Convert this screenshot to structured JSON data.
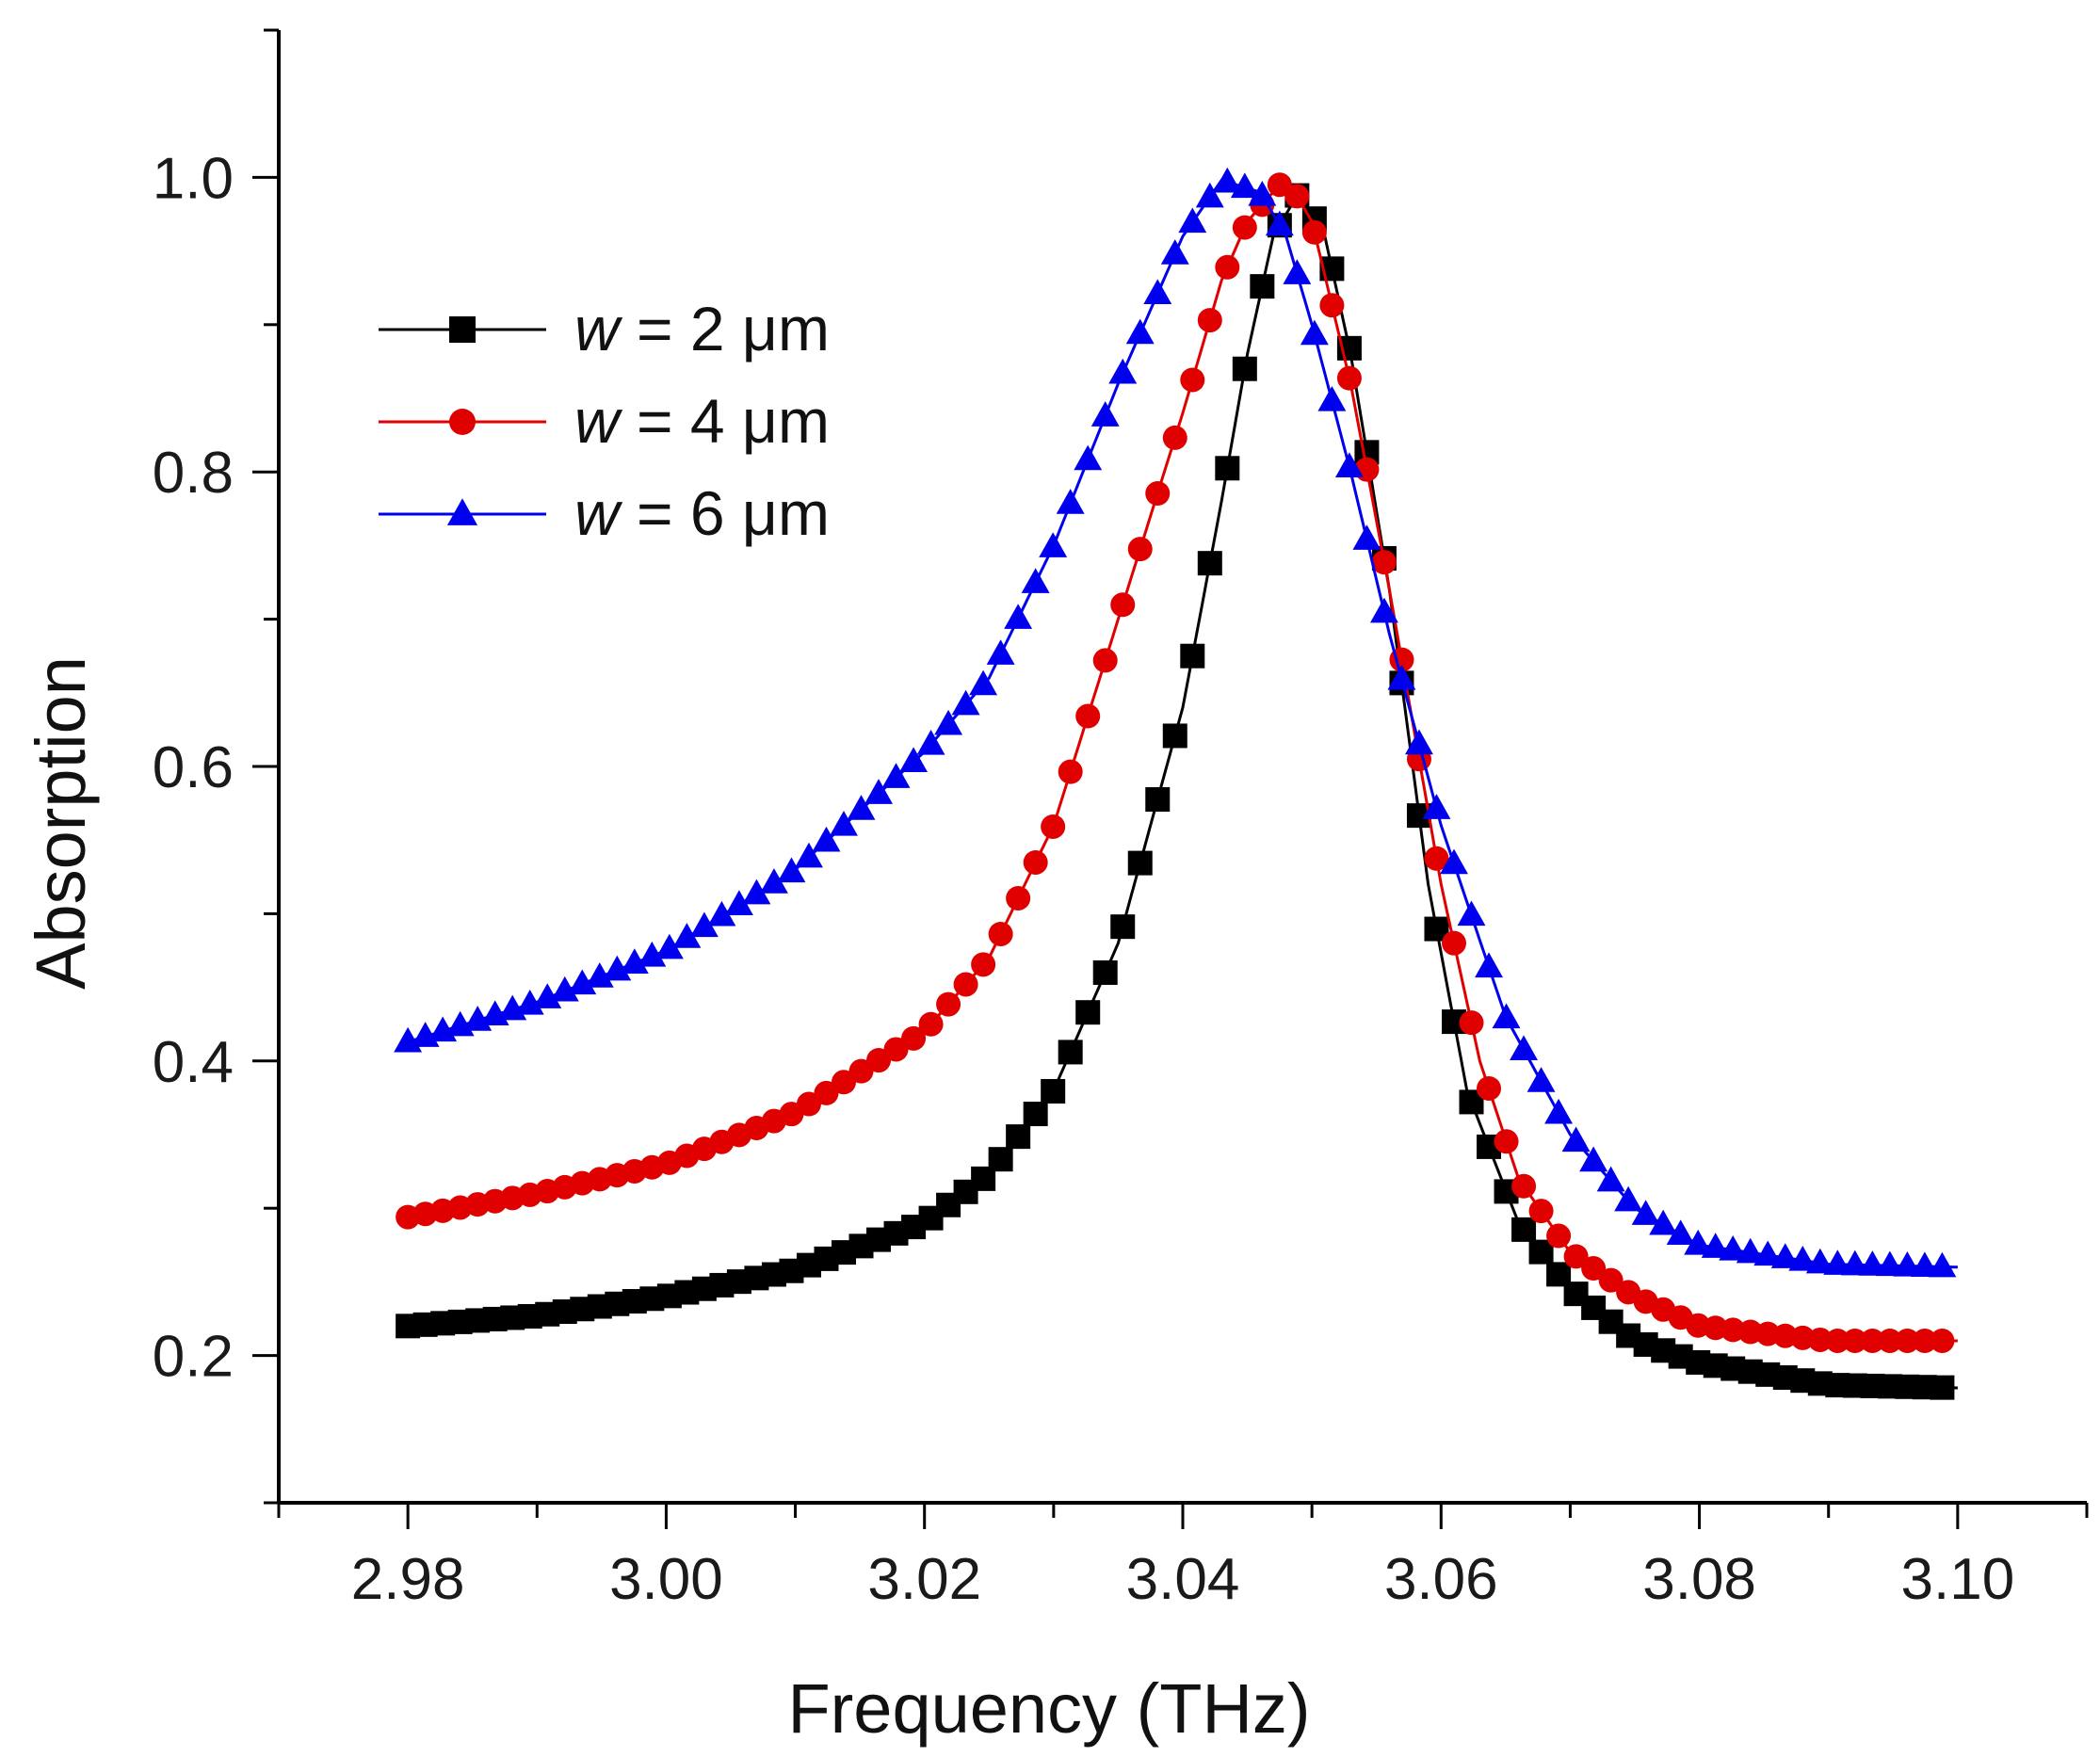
{
  "chart_data": {
    "type": "line",
    "title": "",
    "xlabel": "Frequency (THz)",
    "ylabel": "Absorption",
    "xlim": [
      2.97,
      3.11
    ],
    "ylim": [
      0.1,
      1.1
    ],
    "xticks": [
      "2.98",
      "3.00",
      "3.02",
      "3.04",
      "3.06",
      "3.08",
      "3.10"
    ],
    "xtick_values": [
      2.98,
      3.0,
      3.02,
      3.04,
      3.06,
      3.08,
      3.1
    ],
    "yticks": [
      "0.2",
      "0.4",
      "0.6",
      "0.8",
      "1.0"
    ],
    "ytick_values": [
      0.2,
      0.4,
      0.6,
      0.8,
      1.0
    ],
    "grid": false,
    "legend_position": "upper-left",
    "series": [
      {
        "name": "w = 2 μm",
        "legend_var": "w",
        "legend_rest": " = 2 μm",
        "color": "#000000",
        "marker": "square",
        "x": [
          2.98,
          2.99,
          3.0,
          3.01,
          3.02,
          3.025,
          3.03,
          3.035,
          3.04,
          3.043,
          3.045,
          3.047,
          3.049,
          3.051,
          3.053,
          3.056,
          3.059,
          3.062,
          3.066,
          3.07,
          3.075,
          3.08,
          3.09,
          3.1
        ],
        "y": [
          0.22,
          0.227,
          0.24,
          0.258,
          0.29,
          0.323,
          0.38,
          0.48,
          0.64,
          0.78,
          0.88,
          0.96,
          0.99,
          0.96,
          0.88,
          0.72,
          0.52,
          0.38,
          0.29,
          0.245,
          0.21,
          0.195,
          0.18,
          0.178
        ]
      },
      {
        "name": "w = 4 μm",
        "legend_var": "w",
        "legend_rest": " = 4 μm",
        "color": "#e00000",
        "marker": "circle",
        "x": [
          2.98,
          2.99,
          3.0,
          3.01,
          3.02,
          3.025,
          3.03,
          3.035,
          3.04,
          3.043,
          3.045,
          3.048,
          3.05,
          3.053,
          3.056,
          3.06,
          3.063,
          3.066,
          3.07,
          3.075,
          3.08,
          3.09,
          3.1
        ],
        "y": [
          0.294,
          0.31,
          0.33,
          0.365,
          0.42,
          0.47,
          0.56,
          0.7,
          0.84,
          0.93,
          0.97,
          1.0,
          0.97,
          0.86,
          0.72,
          0.52,
          0.4,
          0.32,
          0.27,
          0.24,
          0.22,
          0.21,
          0.21
        ]
      },
      {
        "name": "w = 6 μm",
        "legend_var": "w",
        "legend_rest": " = 6 μm",
        "color": "#0000ee",
        "marker": "triangle",
        "x": [
          2.98,
          2.99,
          3.0,
          3.01,
          3.02,
          3.025,
          3.03,
          3.035,
          3.04,
          3.043,
          3.046,
          3.048,
          3.05,
          3.053,
          3.056,
          3.06,
          3.065,
          3.07,
          3.075,
          3.08,
          3.09,
          3.1
        ],
        "y": [
          0.413,
          0.44,
          0.475,
          0.53,
          0.61,
          0.66,
          0.75,
          0.86,
          0.96,
          0.998,
          0.99,
          0.96,
          0.9,
          0.8,
          0.69,
          0.56,
          0.43,
          0.35,
          0.3,
          0.275,
          0.262,
          0.26
        ]
      }
    ]
  }
}
